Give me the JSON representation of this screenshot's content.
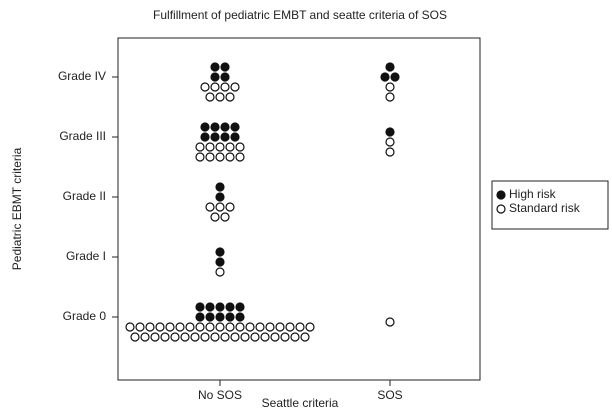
{
  "chart_data": {
    "type": "dotplot",
    "title": "Fulfillment of pediatric EMBT and seatte criteria of SOS",
    "x_label": "Seattle criteria",
    "y_label": "Pediatric EBMT criteria",
    "categories": [
      "No SOS",
      "SOS"
    ],
    "y_categories": [
      "Grade 0",
      "Grade I",
      "Grade II",
      "Grade III",
      "Grade IV"
    ],
    "legend": "right",
    "series": [
      {
        "name": "High risk",
        "color": "#111111",
        "filled": true,
        "values": [
          [
            10,
            0
          ],
          [
            2,
            0
          ],
          [
            2,
            0
          ],
          [
            8,
            1
          ],
          [
            4,
            3
          ]
        ]
      },
      {
        "name": "Standard risk",
        "color": "#111111",
        "filled": false,
        "values": [
          [
            37,
            1
          ],
          [
            1,
            0
          ],
          [
            5,
            0
          ],
          [
            10,
            2
          ],
          [
            7,
            2
          ]
        ]
      }
    ]
  }
}
